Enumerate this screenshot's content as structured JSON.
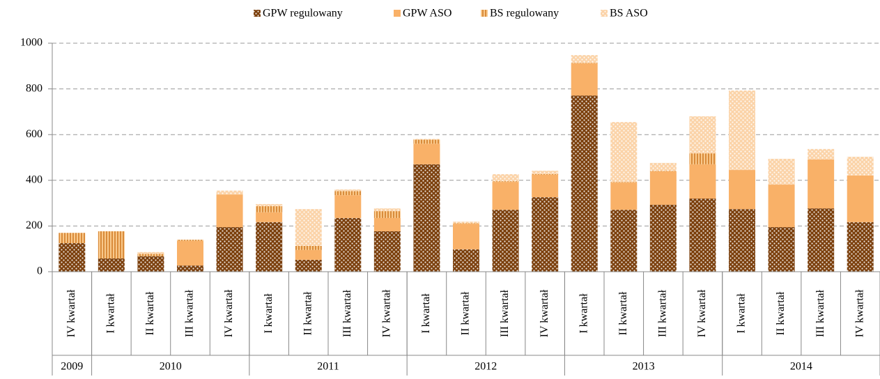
{
  "chart_data": {
    "type": "stacked_bar",
    "categories": [
      "IV kwartał",
      "I kwartał",
      "II kwartał",
      "III kwartał",
      "IV kwartał",
      "I kwartał",
      "II kwartał",
      "III kwartał",
      "IV kwartał",
      "I kwartał",
      "II kwartał",
      "III kwartał",
      "IV kwartał",
      "I kwartał",
      "II kwartał",
      "III kwartał",
      "IV kwartał",
      "I kwartał",
      "II kwartał",
      "III kwartał",
      "IV kwartał"
    ],
    "groups": [
      {
        "label": "2009",
        "span": 1
      },
      {
        "label": "2010",
        "span": 4
      },
      {
        "label": "2011",
        "span": 4
      },
      {
        "label": "2012",
        "span": 4
      },
      {
        "label": "2013",
        "span": 4
      },
      {
        "label": "2014",
        "span": 4
      }
    ],
    "series": [
      {
        "name": "GPW regulowany",
        "color": "#7b3f0c",
        "pattern": "dots",
        "values": [
          125,
          58,
          68,
          27,
          195,
          217,
          52,
          235,
          177,
          470,
          98,
          271,
          326,
          771,
          271,
          293,
          320,
          274,
          195,
          277,
          217
        ]
      },
      {
        "name": "GPW ASO",
        "color": "#f9b168",
        "pattern": "solid",
        "values": [
          0,
          0,
          0,
          108,
          143,
          43,
          43,
          100,
          58,
          90,
          112,
          122,
          98,
          141,
          119,
          146,
          150,
          171,
          186,
          214,
          204
        ]
      },
      {
        "name": "BS regulowany",
        "color": "#d98b3a",
        "pattern": "stripes",
        "values": [
          45,
          119,
          10,
          5,
          0,
          27,
          18,
          18,
          30,
          18,
          2,
          3,
          3,
          2,
          2,
          2,
          48,
          0,
          0,
          0,
          0
        ]
      },
      {
        "name": "BS ASO",
        "color": "#fbd3a8",
        "pattern": "dots",
        "values": [
          0,
          0,
          8,
          0,
          17,
          9,
          161,
          7,
          12,
          3,
          7,
          31,
          15,
          34,
          263,
          35,
          162,
          348,
          113,
          46,
          82
        ]
      }
    ],
    "ylim": [
      0,
      1000
    ],
    "yticks": [
      0,
      200,
      400,
      600,
      800,
      1000
    ],
    "grid": true,
    "legend": "top"
  }
}
